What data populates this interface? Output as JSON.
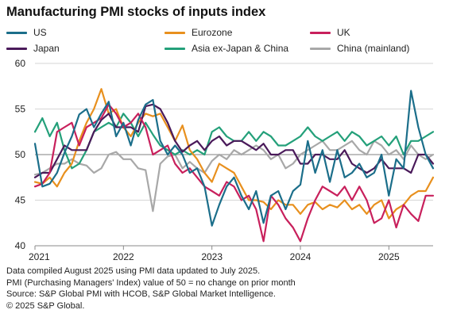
{
  "title": "Manufacturing PMI stocks of inputs index",
  "notes": [
    "Data compiled August 2025 using PMI data updated to July 2025.",
    "PMI (Purchasing Managers' Index) value of 50 = no change on prior month",
    "Source: S&P Global PMI with HCOB, S&P Global Market Intelligence.",
    "© 2025 S&P Global."
  ],
  "chart_data": {
    "type": "line",
    "title": "Manufacturing PMI stocks of inputs index",
    "xlabel": "",
    "ylabel": "",
    "x_ticks": [
      "2021",
      "2022",
      "2023",
      "2024",
      "2025"
    ],
    "x_start": "2021-01",
    "x_end": "2025-07",
    "ylim": [
      40,
      60
    ],
    "y_ticks": [
      40,
      45,
      50,
      55,
      60
    ],
    "grid": "horizontal",
    "reference_line": 50,
    "legend_position": "top",
    "series": [
      {
        "name": "US",
        "color": "#1b6e8a",
        "values": [
          51.2,
          46.5,
          46.8,
          48.0,
          50.2,
          52.0,
          54.4,
          55.0,
          53.0,
          54.5,
          55.8,
          52.0,
          53.5,
          51.0,
          53.8,
          55.5,
          56.0,
          51.5,
          50.0,
          51.0,
          50.0,
          48.0,
          48.5,
          46.5,
          42.2,
          44.5,
          46.5,
          47.5,
          45.5,
          44.0,
          46.0,
          42.5,
          45.5,
          46.0,
          44.0,
          46.0,
          46.7,
          51.5,
          48.0,
          50.5,
          47.0,
          50.5,
          47.5,
          48.0,
          49.0,
          47.5,
          48.0,
          50.0,
          45.5,
          49.5,
          48.5,
          57.0,
          53.0,
          50.0,
          48.5
        ]
      },
      {
        "name": "Eurozone",
        "color": "#e8901e",
        "values": [
          47.0,
          46.8,
          47.5,
          46.5,
          48.0,
          49.0,
          51.5,
          53.5,
          55.0,
          57.2,
          54.5,
          55.0,
          53.0,
          52.0,
          53.5,
          54.5,
          54.2,
          54.5,
          53.0,
          51.5,
          53.2,
          50.5,
          49.5,
          48.0,
          47.0,
          49.0,
          48.5,
          48.0,
          46.5,
          45.0,
          45.0,
          44.8,
          44.0,
          45.0,
          44.5,
          44.5,
          43.5,
          44.5,
          44.8,
          44.0,
          44.5,
          44.2,
          45.0,
          44.0,
          44.5,
          43.5,
          44.5,
          45.0,
          43.0,
          44.0,
          44.5,
          45.5,
          46.0,
          46.0,
          47.5
        ]
      },
      {
        "name": "UK",
        "color": "#c8205c",
        "values": [
          46.5,
          46.8,
          48.0,
          52.5,
          53.0,
          53.5,
          51.0,
          53.0,
          53.5,
          54.0,
          55.5,
          54.5,
          53.0,
          53.5,
          54.5,
          53.0,
          50.0,
          50.5,
          51.0,
          49.0,
          48.0,
          48.5,
          47.5,
          46.5,
          46.0,
          45.5,
          47.0,
          46.5,
          45.0,
          45.5,
          44.0,
          40.5,
          45.5,
          44.5,
          43.0,
          42.0,
          40.5,
          43.0,
          45.0,
          46.5,
          46.0,
          45.5,
          46.5,
          45.0,
          46.5,
          45.0,
          42.5,
          43.0,
          45.0,
          42.0,
          44.5,
          43.5,
          42.7,
          45.5,
          45.5
        ]
      },
      {
        "name": "Japan",
        "color": "#4a1a5a",
        "values": [
          47.5,
          48.0,
          48.0,
          49.5,
          51.0,
          50.5,
          50.5,
          50.5,
          52.5,
          53.8,
          54.5,
          53.0,
          53.0,
          53.0,
          52.5,
          55.3,
          55.5,
          55.0,
          53.5,
          51.5,
          50.3,
          51.0,
          51.5,
          50.5,
          51.5,
          52.0,
          51.0,
          51.5,
          51.5,
          51.0,
          50.5,
          51.2,
          50.0,
          50.0,
          50.5,
          50.5,
          49.0,
          49.0,
          50.0,
          50.0,
          49.5,
          49.5,
          50.5,
          49.0,
          48.5,
          48.0,
          48.5,
          49.5,
          48.5,
          48.5,
          48.5,
          48.0,
          50.0,
          50.0,
          49.0
        ]
      },
      {
        "name": "Asia ex-Japan & China",
        "color": "#24a07a",
        "values": [
          52.5,
          54.0,
          52.0,
          53.5,
          50.5,
          48.5,
          49.0,
          50.5,
          52.5,
          53.0,
          53.5,
          53.0,
          54.5,
          53.5,
          52.0,
          53.5,
          52.2,
          51.0,
          50.5,
          50.0,
          50.5,
          50.0,
          50.5,
          50.0,
          52.5,
          53.0,
          52.0,
          51.5,
          51.5,
          52.5,
          51.5,
          52.5,
          52.0,
          51.0,
          51.0,
          51.5,
          52.0,
          53.0,
          52.0,
          51.5,
          52.0,
          52.5,
          51.5,
          52.5,
          52.0,
          51.0,
          51.5,
          52.0,
          51.0,
          52.0,
          50.0,
          51.5,
          51.5,
          52.0,
          52.5
        ]
      },
      {
        "name": "China (mainland)",
        "color": "#a8a8a8",
        "values": [
          47.8,
          48.0,
          48.5,
          49.0,
          49.0,
          49.5,
          49.0,
          48.8,
          48.0,
          48.5,
          50.0,
          50.3,
          49.5,
          49.5,
          48.5,
          48.3,
          43.8,
          49.0,
          49.8,
          50.0,
          48.5,
          49.2,
          48.5,
          48.0,
          49.3,
          50.0,
          49.5,
          50.5,
          50.0,
          50.5,
          51.0,
          50.5,
          49.5,
          50.0,
          48.5,
          49.0,
          50.0,
          50.5,
          51.0,
          51.5,
          50.5,
          50.5,
          51.0,
          51.5,
          50.5,
          50.0,
          51.5,
          51.0,
          50.0,
          50.5,
          49.5,
          51.0,
          50.0,
          49.5,
          50.0
        ]
      }
    ]
  }
}
